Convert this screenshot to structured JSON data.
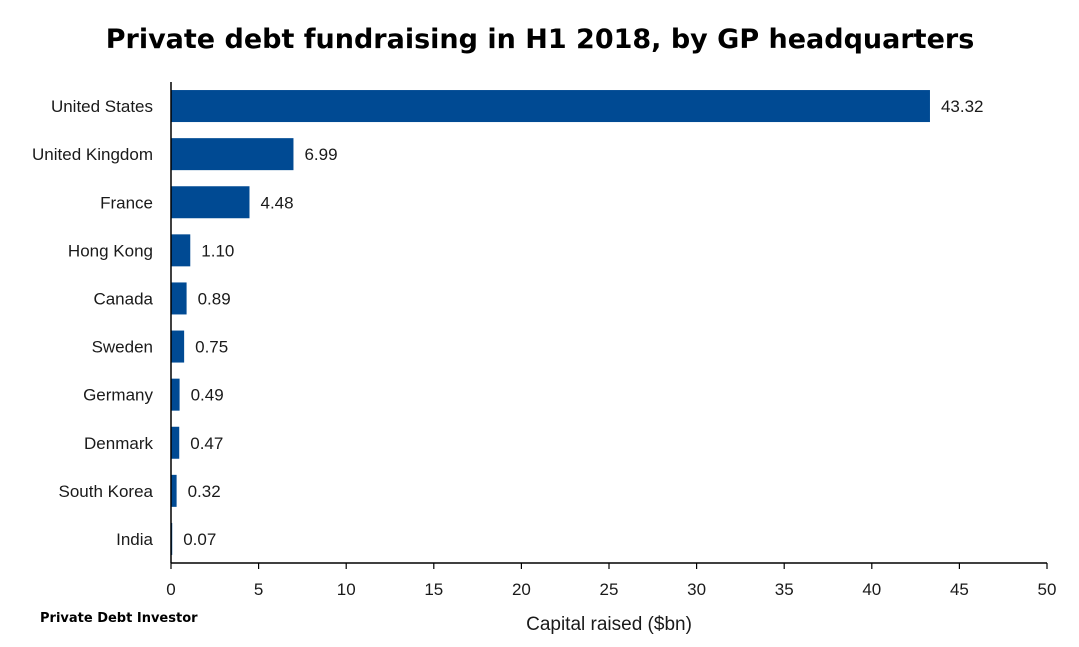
{
  "chart_data": {
    "type": "bar",
    "orientation": "horizontal",
    "title": "Private debt fundraising in H1 2018, by GP headquarters",
    "xlabel": "Capital raised ($bn)",
    "ylabel": "",
    "categories": [
      "United States",
      "United Kingdom",
      "France",
      "Hong Kong",
      "Canada",
      "Sweden",
      "Germany",
      "Denmark",
      "South Korea",
      "India"
    ],
    "values": [
      43.32,
      6.99,
      4.48,
      1.1,
      0.89,
      0.75,
      0.49,
      0.47,
      0.32,
      0.07
    ],
    "value_labels": [
      "43.32",
      "6.99",
      "4.48",
      "1.10",
      "0.89",
      "0.75",
      "0.49",
      "0.47",
      "0.32",
      "0.07"
    ],
    "xlim": [
      0,
      50
    ],
    "xticks": [
      0,
      5,
      10,
      15,
      20,
      25,
      30,
      35,
      40,
      45,
      50
    ],
    "grid": false,
    "legend": "none",
    "bar_color": "#004a93"
  },
  "source": "Private Debt Investor"
}
